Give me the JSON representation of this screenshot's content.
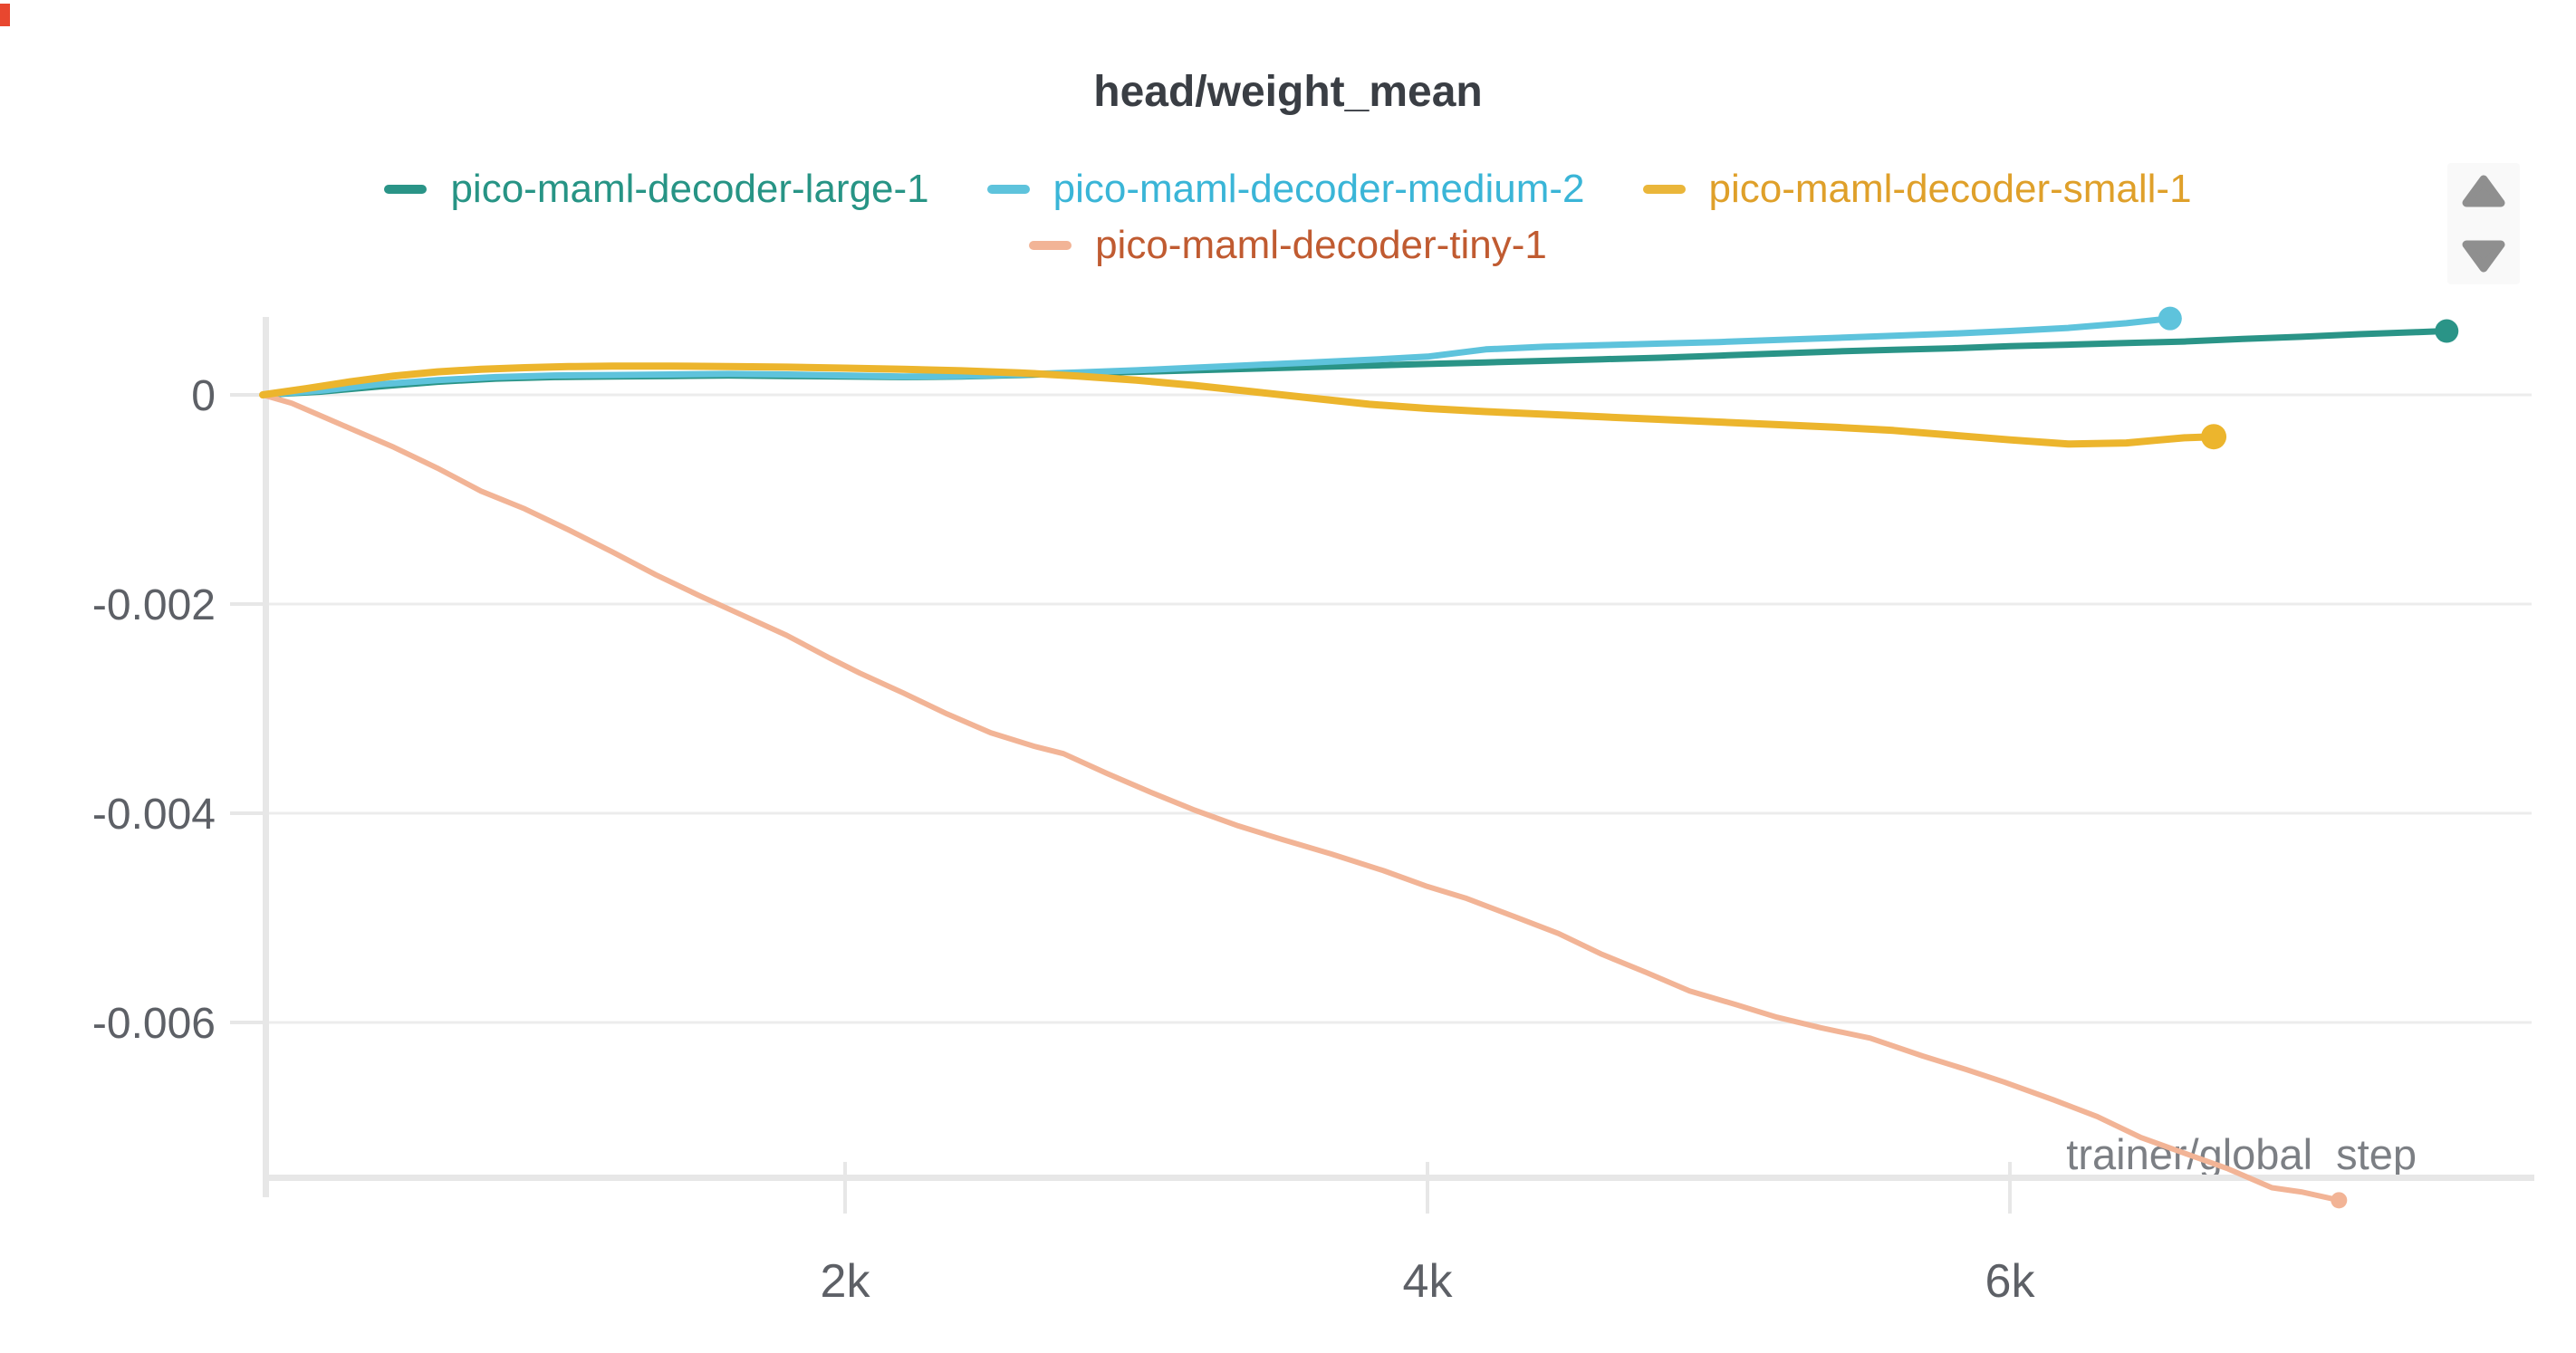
{
  "panel": {
    "title": "head/weight_mean"
  },
  "legend": [
    {
      "label": "pico-maml-decoder-large-1",
      "dash_color": "#2a9487",
      "text_color": "#279485"
    },
    {
      "label": "pico-maml-decoder-medium-2",
      "dash_color": "#5ec3dc",
      "text_color": "#3ab5d7"
    },
    {
      "label": "pico-maml-decoder-small-1",
      "dash_color": "#eab63a",
      "text_color": "#dfa02a"
    },
    {
      "label": "pico-maml-decoder-tiny-1",
      "dash_color": "#f2b496",
      "text_color": "#c05b31"
    }
  ],
  "icons": {
    "up": "triangle-up-icon",
    "down": "triangle-down-icon",
    "arrow_color": "#8f8f8f"
  },
  "chart_data": {
    "type": "line",
    "title": "head/weight_mean",
    "xlabel": "trainer/global_step",
    "ylabel": "",
    "grid": true,
    "legend_position": "top",
    "xlim": [
      0,
      7800
    ],
    "ylim": [
      -0.0078,
      0.00085
    ],
    "x_ticks": [
      {
        "value": 2000,
        "label": "2k"
      },
      {
        "value": 4000,
        "label": "4k"
      },
      {
        "value": 6000,
        "label": "6k"
      }
    ],
    "y_ticks": [
      {
        "value": 0,
        "label": "0"
      },
      {
        "value": -0.002,
        "label": "-0.002"
      },
      {
        "value": -0.004,
        "label": "-0.004"
      },
      {
        "value": -0.006,
        "label": "-0.006"
      }
    ],
    "colors": {
      "grid": "#ececec",
      "axis": "#e7e7e7",
      "tick_text": "#5d6066",
      "axis_label_text": "#7c7f84",
      "title_text": "#3a3e44"
    },
    "series": [
      {
        "name": "pico-maml-decoder-large-1",
        "color": "#2a9487",
        "line_width": 7,
        "end_dot_radius": 13,
        "z": 1,
        "points": [
          [
            0,
            0
          ],
          [
            200,
            3e-05
          ],
          [
            400,
            8e-05
          ],
          [
            600,
            0.000125
          ],
          [
            800,
            0.000155
          ],
          [
            1000,
            0.00017
          ],
          [
            1200,
            0.000175
          ],
          [
            1400,
            0.00018
          ],
          [
            1600,
            0.000185
          ],
          [
            1800,
            0.00018
          ],
          [
            2000,
            0.000175
          ],
          [
            2200,
            0.00017
          ],
          [
            2400,
            0.000175
          ],
          [
            2600,
            0.00019
          ],
          [
            2800,
            0.000205
          ],
          [
            3000,
            0.00022
          ],
          [
            3200,
            0.000235
          ],
          [
            3400,
            0.00025
          ],
          [
            3600,
            0.000265
          ],
          [
            3800,
            0.00028
          ],
          [
            4000,
            0.000295
          ],
          [
            4200,
            0.00031
          ],
          [
            4400,
            0.000325
          ],
          [
            4600,
            0.00034
          ],
          [
            4800,
            0.000355
          ],
          [
            5000,
            0.000375
          ],
          [
            5200,
            0.000395
          ],
          [
            5400,
            0.000415
          ],
          [
            5600,
            0.00043
          ],
          [
            5800,
            0.000445
          ],
          [
            6000,
            0.000465
          ],
          [
            6200,
            0.00048
          ],
          [
            6400,
            0.000495
          ],
          [
            6600,
            0.00051
          ],
          [
            6800,
            0.000535
          ],
          [
            7000,
            0.000555
          ],
          [
            7200,
            0.00058
          ],
          [
            7400,
            0.0006
          ],
          [
            7500,
            0.00061
          ]
        ]
      },
      {
        "name": "pico-maml-decoder-medium-2",
        "color": "#5ec3dc",
        "line_width": 7,
        "end_dot_radius": 13,
        "z": 2,
        "points": [
          [
            0,
            0
          ],
          [
            200,
            4e-05
          ],
          [
            400,
            0.0001
          ],
          [
            600,
            0.00014
          ],
          [
            800,
            0.00017
          ],
          [
            1000,
            0.000185
          ],
          [
            1200,
            0.00019
          ],
          [
            1400,
            0.000195
          ],
          [
            1600,
            0.0002
          ],
          [
            1800,
            0.000195
          ],
          [
            2000,
            0.000185
          ],
          [
            2200,
            0.000175
          ],
          [
            2400,
            0.00018
          ],
          [
            2600,
            0.000195
          ],
          [
            2800,
            0.000215
          ],
          [
            3000,
            0.000235
          ],
          [
            3200,
            0.00026
          ],
          [
            3400,
            0.000285
          ],
          [
            3600,
            0.00031
          ],
          [
            3800,
            0.000335
          ],
          [
            4000,
            0.000365
          ],
          [
            4200,
            0.000435
          ],
          [
            4400,
            0.00046
          ],
          [
            4600,
            0.000475
          ],
          [
            4800,
            0.00049
          ],
          [
            5000,
            0.000505
          ],
          [
            5200,
            0.000525
          ],
          [
            5400,
            0.000545
          ],
          [
            5600,
            0.000565
          ],
          [
            5800,
            0.000585
          ],
          [
            6000,
            0.00061
          ],
          [
            6200,
            0.00064
          ],
          [
            6400,
            0.000685
          ],
          [
            6550,
            0.00073
          ]
        ]
      },
      {
        "name": "pico-maml-decoder-small-1",
        "color": "#ecb52d",
        "line_width": 8,
        "end_dot_radius": 14,
        "z": 4,
        "points": [
          [
            0,
            0
          ],
          [
            150,
            6e-05
          ],
          [
            300,
            0.000125
          ],
          [
            450,
            0.00018
          ],
          [
            600,
            0.00022
          ],
          [
            750,
            0.000245
          ],
          [
            900,
            0.00026
          ],
          [
            1050,
            0.00027
          ],
          [
            1200,
            0.000275
          ],
          [
            1400,
            0.000275
          ],
          [
            1600,
            0.00027
          ],
          [
            1800,
            0.000265
          ],
          [
            2000,
            0.000255
          ],
          [
            2200,
            0.000245
          ],
          [
            2400,
            0.00023
          ],
          [
            2600,
            0.00021
          ],
          [
            2800,
            0.00018
          ],
          [
            3000,
            0.00014
          ],
          [
            3200,
            9e-05
          ],
          [
            3400,
            3e-05
          ],
          [
            3600,
            -3e-05
          ],
          [
            3800,
            -9e-05
          ],
          [
            4000,
            -0.00013
          ],
          [
            4200,
            -0.00016
          ],
          [
            4400,
            -0.000185
          ],
          [
            4600,
            -0.00021
          ],
          [
            4800,
            -0.000235
          ],
          [
            5000,
            -0.00026
          ],
          [
            5200,
            -0.000285
          ],
          [
            5400,
            -0.00031
          ],
          [
            5600,
            -0.00034
          ],
          [
            5800,
            -0.000385
          ],
          [
            6000,
            -0.00043
          ],
          [
            6200,
            -0.00047
          ],
          [
            6400,
            -0.00046
          ],
          [
            6500,
            -0.000435
          ],
          [
            6600,
            -0.00041
          ],
          [
            6700,
            -0.0004
          ]
        ]
      },
      {
        "name": "pico-maml-decoder-tiny-1",
        "color": "#f2b496",
        "line_width": 6,
        "end_dot_radius": 9,
        "z": 3,
        "points": [
          [
            0,
            0
          ],
          [
            100,
            -8e-05
          ],
          [
            200,
            -0.0002
          ],
          [
            300,
            -0.00032
          ],
          [
            450,
            -0.0005
          ],
          [
            600,
            -0.0007
          ],
          [
            750,
            -0.00092
          ],
          [
            900,
            -0.00109
          ],
          [
            1050,
            -0.00129
          ],
          [
            1200,
            -0.0015
          ],
          [
            1350,
            -0.00172
          ],
          [
            1500,
            -0.00192
          ],
          [
            1650,
            -0.00211
          ],
          [
            1800,
            -0.0023
          ],
          [
            1950,
            -0.00252
          ],
          [
            2050,
            -0.00266
          ],
          [
            2200,
            -0.00285
          ],
          [
            2350,
            -0.00305
          ],
          [
            2500,
            -0.00323
          ],
          [
            2650,
            -0.00336
          ],
          [
            2750,
            -0.00343
          ],
          [
            2900,
            -0.00362
          ],
          [
            3050,
            -0.0038
          ],
          [
            3200,
            -0.00397
          ],
          [
            3350,
            -0.00412
          ],
          [
            3500,
            -0.00425
          ],
          [
            3670,
            -0.00439
          ],
          [
            3850,
            -0.00455
          ],
          [
            4000,
            -0.0047
          ],
          [
            4130,
            -0.00481
          ],
          [
            4300,
            -0.00499
          ],
          [
            4450,
            -0.00515
          ],
          [
            4600,
            -0.00535
          ],
          [
            4750,
            -0.00552
          ],
          [
            4900,
            -0.0057
          ],
          [
            5060,
            -0.00583
          ],
          [
            5200,
            -0.00595
          ],
          [
            5350,
            -0.00605
          ],
          [
            5520,
            -0.00615
          ],
          [
            5700,
            -0.00632
          ],
          [
            5850,
            -0.00645
          ],
          [
            5980,
            -0.00657
          ],
          [
            6150,
            -0.00674
          ],
          [
            6300,
            -0.0069
          ],
          [
            6450,
            -0.0071
          ],
          [
            6600,
            -0.00725
          ],
          [
            6750,
            -0.0074
          ],
          [
            6900,
            -0.00758
          ],
          [
            7000,
            -0.00762
          ],
          [
            7130,
            -0.0077
          ]
        ]
      }
    ]
  }
}
